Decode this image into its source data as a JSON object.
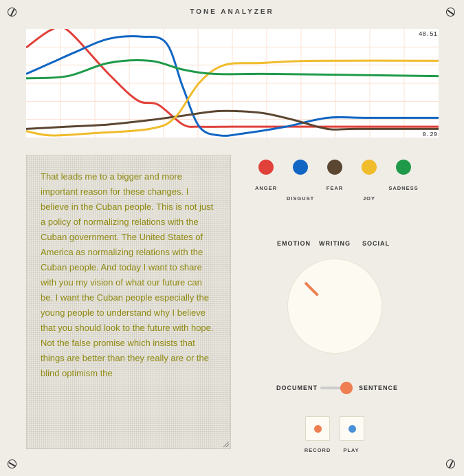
{
  "app": {
    "title": "TONE ANALYZER"
  },
  "chart": {
    "y_max_label": "48.51",
    "y_min_label": "0.29",
    "series": [
      {
        "key": "anger",
        "color": "#e0413a",
        "points": [
          [
            0,
            40
          ],
          [
            0.06,
            48
          ],
          [
            0.1,
            48
          ],
          [
            0.2,
            28
          ],
          [
            0.27,
            16
          ],
          [
            0.32,
            14
          ],
          [
            0.38,
            5
          ],
          [
            0.42,
            4
          ],
          [
            0.5,
            4
          ],
          [
            0.6,
            4
          ],
          [
            0.7,
            4
          ],
          [
            0.8,
            4
          ],
          [
            1,
            4
          ]
        ]
      },
      {
        "key": "disgust",
        "color": "#1166c4",
        "points": [
          [
            0,
            28
          ],
          [
            0.06,
            33
          ],
          [
            0.12,
            38
          ],
          [
            0.2,
            44
          ],
          [
            0.28,
            45
          ],
          [
            0.34,
            42
          ],
          [
            0.38,
            22
          ],
          [
            0.42,
            4
          ],
          [
            0.47,
            0
          ],
          [
            0.53,
            1
          ],
          [
            0.63,
            4
          ],
          [
            0.73,
            8
          ],
          [
            0.83,
            8
          ],
          [
            1,
            8
          ]
        ]
      },
      {
        "key": "fear",
        "color": "#5b4632",
        "points": [
          [
            0,
            3
          ],
          [
            0.1,
            4
          ],
          [
            0.2,
            5
          ],
          [
            0.3,
            7
          ],
          [
            0.38,
            9
          ],
          [
            0.46,
            11
          ],
          [
            0.52,
            11
          ],
          [
            0.58,
            10
          ],
          [
            0.65,
            7
          ],
          [
            0.73,
            3
          ],
          [
            0.8,
            3
          ],
          [
            1,
            3
          ]
        ]
      },
      {
        "key": "joy",
        "color": "#f0bc2c",
        "points": [
          [
            0,
            2
          ],
          [
            0.06,
            0
          ],
          [
            0.16,
            1
          ],
          [
            0.3,
            3
          ],
          [
            0.36,
            8
          ],
          [
            0.42,
            24
          ],
          [
            0.48,
            32
          ],
          [
            0.57,
            33
          ],
          [
            0.7,
            34
          ],
          [
            1,
            34
          ]
        ]
      },
      {
        "key": "sadness",
        "color": "#1f9a4a",
        "points": [
          [
            0,
            26
          ],
          [
            0.1,
            27
          ],
          [
            0.2,
            33
          ],
          [
            0.3,
            34
          ],
          [
            0.38,
            30
          ],
          [
            0.46,
            28
          ],
          [
            0.6,
            28
          ],
          [
            1,
            27
          ]
        ]
      }
    ]
  },
  "text": {
    "content": "That leads me to a bigger and more important reason for these changes. I believe in the Cuban people. This is not just a policy of normalizing relations with the Cuban government. The United States of America as normalizing relations with the Cuban people. And today I want to share with you my vision of what our future can be. I want the Cuban people especially the young people to understand why I believe that you should look to the future with hope. Not the false promise which insists that things are better than they really are or the blind optimism the"
  },
  "legend": [
    {
      "key": "anger",
      "label": "ANGER",
      "color": "#e0413a"
    },
    {
      "key": "disgust",
      "label": "DISGUST",
      "color": "#1166c4"
    },
    {
      "key": "fear",
      "label": "FEAR",
      "color": "#5b4632"
    },
    {
      "key": "joy",
      "label": "JOY",
      "color": "#f0bc2c"
    },
    {
      "key": "sadness",
      "label": "SADNESS",
      "color": "#1f9a4a"
    }
  ],
  "tone_tabs": {
    "emotion": "EMOTION",
    "writing": "WRITING",
    "social": "SOCIAL"
  },
  "mode_toggle": {
    "left": "DOCUMENT",
    "right": "SENTENCE",
    "selected": "SENTENCE"
  },
  "controls": {
    "record": {
      "label": "RECORD",
      "color": "#ef7e52"
    },
    "play": {
      "label": "PLAY",
      "color": "#4a90d9"
    }
  },
  "colors": {
    "accent": "#ef7e52",
    "text": "#8f8a12"
  }
}
